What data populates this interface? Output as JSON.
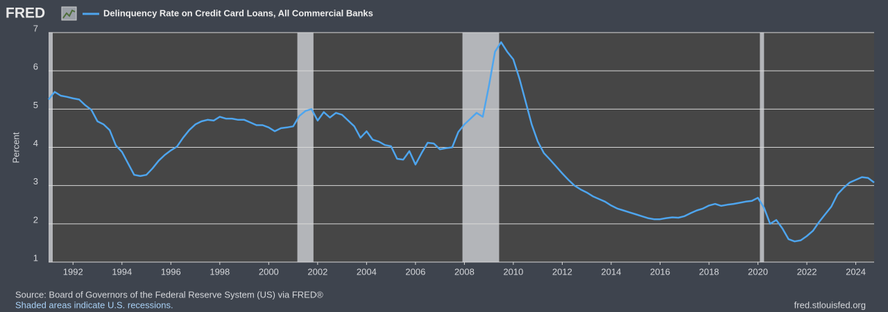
{
  "header": {
    "logo": "FRED"
  },
  "chart_data": {
    "type": "line",
    "ylabel": "Percent",
    "x": [
      1991,
      1991.25,
      1991.5,
      1991.75,
      1992,
      1992.25,
      1992.5,
      1992.75,
      1993,
      1993.25,
      1993.5,
      1993.75,
      1994,
      1994.25,
      1994.5,
      1994.75,
      1995,
      1995.25,
      1995.5,
      1995.75,
      1996,
      1996.25,
      1996.5,
      1996.75,
      1997,
      1997.25,
      1997.5,
      1997.75,
      1998,
      1998.25,
      1998.5,
      1998.75,
      1999,
      1999.25,
      1999.5,
      1999.75,
      2000,
      2000.25,
      2000.5,
      2000.75,
      2001,
      2001.25,
      2001.5,
      2001.75,
      2002,
      2002.25,
      2002.5,
      2002.75,
      2003,
      2003.25,
      2003.5,
      2003.75,
      2004,
      2004.25,
      2004.5,
      2004.75,
      2005,
      2005.25,
      2005.5,
      2005.75,
      2006,
      2006.25,
      2006.5,
      2006.75,
      2007,
      2007.25,
      2007.5,
      2007.75,
      2008,
      2008.25,
      2008.5,
      2008.75,
      2009,
      2009.25,
      2009.5,
      2009.75,
      2010,
      2010.25,
      2010.5,
      2010.75,
      2011,
      2011.25,
      2011.5,
      2011.75,
      2012,
      2012.25,
      2012.5,
      2012.75,
      2013,
      2013.25,
      2013.5,
      2013.75,
      2014,
      2014.25,
      2014.5,
      2014.75,
      2015,
      2015.25,
      2015.5,
      2015.75,
      2016,
      2016.25,
      2016.5,
      2016.75,
      2017,
      2017.25,
      2017.5,
      2017.75,
      2018,
      2018.25,
      2018.5,
      2018.75,
      2019,
      2019.25,
      2019.5,
      2019.75,
      2020,
      2020.25,
      2020.5,
      2020.75,
      2021,
      2021.25,
      2021.5,
      2021.75,
      2022,
      2022.25,
      2022.5,
      2022.75,
      2023,
      2023.25,
      2023.5,
      2023.75,
      2024,
      2024.25,
      2024.5,
      2024.75
    ],
    "series": [
      {
        "name": "Delinquency Rate on Credit Card Loans, All Commercial Banks",
        "color": "#4ea5ee",
        "values": [
          5.25,
          5.45,
          5.35,
          5.32,
          5.28,
          5.25,
          5.1,
          4.98,
          4.68,
          4.6,
          4.45,
          4.05,
          3.88,
          3.58,
          3.28,
          3.25,
          3.28,
          3.45,
          3.65,
          3.8,
          3.92,
          4.02,
          4.25,
          4.45,
          4.6,
          4.68,
          4.72,
          4.7,
          4.8,
          4.75,
          4.75,
          4.72,
          4.72,
          4.65,
          4.58,
          4.58,
          4.52,
          4.42,
          4.5,
          4.52,
          4.55,
          4.82,
          4.95,
          5.0,
          4.7,
          4.92,
          4.78,
          4.9,
          4.85,
          4.7,
          4.55,
          4.25,
          4.42,
          4.2,
          4.15,
          4.06,
          4.03,
          3.7,
          3.68,
          3.9,
          3.55,
          3.85,
          4.12,
          4.1,
          3.95,
          3.98,
          4.0,
          4.4,
          4.6,
          4.75,
          4.9,
          4.8,
          5.6,
          6.5,
          6.75,
          6.5,
          6.3,
          5.8,
          5.2,
          4.6,
          4.15,
          3.85,
          3.68,
          3.5,
          3.32,
          3.15,
          3.0,
          2.9,
          2.82,
          2.72,
          2.65,
          2.58,
          2.48,
          2.4,
          2.35,
          2.3,
          2.25,
          2.2,
          2.15,
          2.12,
          2.12,
          2.15,
          2.17,
          2.16,
          2.2,
          2.28,
          2.35,
          2.4,
          2.48,
          2.52,
          2.47,
          2.5,
          2.52,
          2.55,
          2.58,
          2.6,
          2.68,
          2.42,
          2.0,
          2.1,
          1.88,
          1.6,
          1.54,
          1.57,
          1.68,
          1.82,
          2.05,
          2.25,
          2.45,
          2.77,
          2.94,
          3.08,
          3.15,
          3.22,
          3.2,
          3.08
        ]
      }
    ],
    "xlim": [
      1991,
      2024.75
    ],
    "xticks": [
      1992,
      1994,
      1996,
      1998,
      2000,
      2002,
      2004,
      2006,
      2008,
      2010,
      2012,
      2014,
      2016,
      2018,
      2020,
      2022,
      2024
    ],
    "ylim": [
      1,
      7
    ],
    "yticks": [
      1,
      2,
      3,
      4,
      5,
      6,
      7
    ],
    "grid": true,
    "recessions": [
      [
        1990.5,
        1991.17
      ],
      [
        2001.17,
        2001.83
      ],
      [
        2007.92,
        2009.42
      ],
      [
        2020.08,
        2020.25
      ]
    ],
    "recession_color": "#b3b5b9"
  },
  "footer": {
    "source": "Source: Board of Governors of the Federal Reserve System (US) via FRED®",
    "note": "Shaded areas indicate U.S. recessions.",
    "url": "fred.stlouisfed.org"
  }
}
